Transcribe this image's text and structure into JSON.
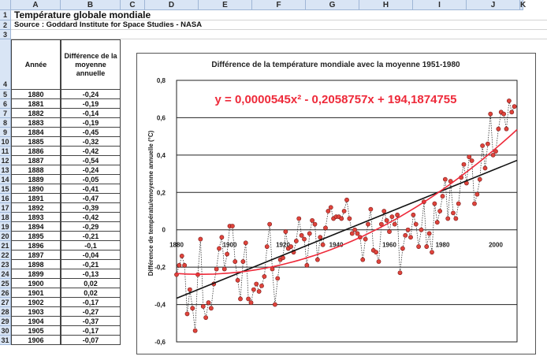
{
  "sheet": {
    "columns": [
      "A",
      "B",
      "C",
      "D",
      "E",
      "F",
      "G",
      "H",
      "I",
      "J",
      "K"
    ],
    "rows": [
      "1",
      "2",
      "3",
      "4",
      "5",
      "6",
      "7",
      "8",
      "9",
      "10",
      "11",
      "12",
      "13",
      "14",
      "15",
      "16",
      "17",
      "18",
      "19",
      "20",
      "21",
      "22",
      "23",
      "24",
      "25",
      "26",
      "27",
      "28",
      "29",
      "30",
      "31"
    ],
    "title": "Température globale mondiale",
    "source": "Source : Goddard Institute for Space Studies - NASA",
    "header_annee": "Année",
    "header_diff": "Différence de la moyenne annuelle",
    "years": [
      "1880",
      "1881",
      "1882",
      "1883",
      "1884",
      "1885",
      "1886",
      "1887",
      "1888",
      "1889",
      "1890",
      "1891",
      "1892",
      "1893",
      "1894",
      "1895",
      "1896",
      "1897",
      "1898",
      "1899",
      "1900",
      "1901",
      "1902",
      "1903",
      "1904",
      "1905",
      "1906"
    ],
    "diffs": [
      "-0,24",
      "-0,19",
      "-0,14",
      "-0,19",
      "-0,45",
      "-0,32",
      "-0,42",
      "-0,54",
      "-0,24",
      "-0,05",
      "-0,41",
      "-0,47",
      "-0,39",
      "-0,42",
      "-0,29",
      "-0,21",
      "-0,1",
      "-0,04",
      "-0,21",
      "-0,13",
      "0,02",
      "0,02",
      "-0,17",
      "-0,27",
      "-0,37",
      "-0,17",
      "-0,07"
    ]
  },
  "chart_data": {
    "type": "scatter",
    "title": "Différence de la température mondiale avec la moyenne 1951-1980",
    "ylabel": "Différence de températu/emoyenne annuelle (°C)",
    "xlabel": "",
    "equation": "y = 0,0000545x² - 0,2058757x + 194,1874755",
    "xticks": [
      "1880",
      "1900",
      "1920",
      "1940",
      "1960",
      "1980",
      "2000"
    ],
    "yticks": [
      "0,8",
      "0,6",
      "0,4",
      "0,2",
      "0",
      "-0,2",
      "-0,4",
      "-0,6"
    ],
    "xlim": [
      1880,
      2008
    ],
    "ylim": [
      -0.6,
      0.8
    ],
    "grid": true,
    "colors": {
      "points": "#e0443c",
      "trend_quadratic": "#ee2a3a",
      "trend_linear": "#111111",
      "equation": "#ee2a3a"
    },
    "series": [
      {
        "x": [
          1880,
          1881,
          1882,
          1883,
          1884,
          1885,
          1886,
          1887,
          1888,
          1889,
          1890,
          1891,
          1892,
          1893,
          1894,
          1895,
          1896,
          1897,
          1898,
          1899,
          1900,
          1901,
          1902,
          1903,
          1904,
          1905,
          1906,
          1907,
          1908,
          1909,
          1910,
          1911,
          1912,
          1913,
          1914,
          1915,
          1916,
          1917,
          1918,
          1919,
          1920,
          1921,
          1922,
          1923,
          1924,
          1925,
          1926,
          1927,
          1928,
          1929,
          1930,
          1931,
          1932,
          1933,
          1934,
          1935,
          1936,
          1937,
          1938,
          1939,
          1940,
          1941,
          1942,
          1943,
          1944,
          1945,
          1946,
          1947,
          1948,
          1949,
          1950,
          1951,
          1952,
          1953,
          1954,
          1955,
          1956,
          1957,
          1958,
          1959,
          1960,
          1961,
          1962,
          1963,
          1964,
          1965,
          1966,
          1967,
          1968,
          1969,
          1970,
          1971,
          1972,
          1973,
          1974,
          1975,
          1976,
          1977,
          1978,
          1979,
          1980,
          1981,
          1982,
          1983,
          1984,
          1985,
          1986,
          1987,
          1988,
          1989,
          1990,
          1991,
          1992,
          1993,
          1994,
          1995,
          1996,
          1997,
          1998,
          1999,
          2000,
          2001,
          2002,
          2003,
          2004,
          2005,
          2006,
          2007
        ],
        "y": [
          -0.24,
          -0.19,
          -0.14,
          -0.19,
          -0.45,
          -0.32,
          -0.42,
          -0.54,
          -0.24,
          -0.05,
          -0.41,
          -0.47,
          -0.39,
          -0.42,
          -0.29,
          -0.21,
          -0.1,
          -0.04,
          -0.21,
          -0.13,
          0.02,
          0.02,
          -0.17,
          -0.27,
          -0.37,
          -0.17,
          -0.07,
          -0.37,
          -0.39,
          -0.32,
          -0.29,
          -0.33,
          -0.3,
          -0.25,
          -0.09,
          0.03,
          -0.21,
          -0.4,
          -0.26,
          -0.16,
          -0.15,
          -0.01,
          -0.1,
          -0.09,
          -0.12,
          -0.06,
          0.06,
          -0.03,
          -0.05,
          -0.19,
          -0.02,
          0.05,
          0.03,
          -0.16,
          -0.04,
          -0.08,
          0.01,
          0.1,
          0.12,
          0.06,
          0.07,
          0.07,
          0.06,
          0.1,
          0.16,
          0.06,
          -0.02,
          0.0,
          -0.02,
          -0.04,
          -0.16,
          -0.05,
          0.03,
          0.11,
          -0.11,
          -0.12,
          -0.17,
          0.03,
          0.1,
          0.05,
          -0.01,
          0.07,
          0.03,
          0.08,
          -0.23,
          -0.1,
          -0.03,
          0.0,
          -0.04,
          0.08,
          0.03,
          -0.09,
          0.0,
          0.15,
          -0.09,
          -0.02,
          -0.12,
          0.14,
          0.04,
          0.1,
          0.18,
          0.27,
          0.06,
          0.26,
          0.09,
          0.06,
          0.14,
          0.28,
          0.35,
          0.25,
          0.39,
          0.37,
          0.14,
          0.19,
          0.27,
          0.45,
          0.33,
          0.46,
          0.62,
          0.4,
          0.42,
          0.54,
          0.63,
          0.62,
          0.54,
          0.69,
          0.63,
          0.66
        ]
      }
    ]
  }
}
